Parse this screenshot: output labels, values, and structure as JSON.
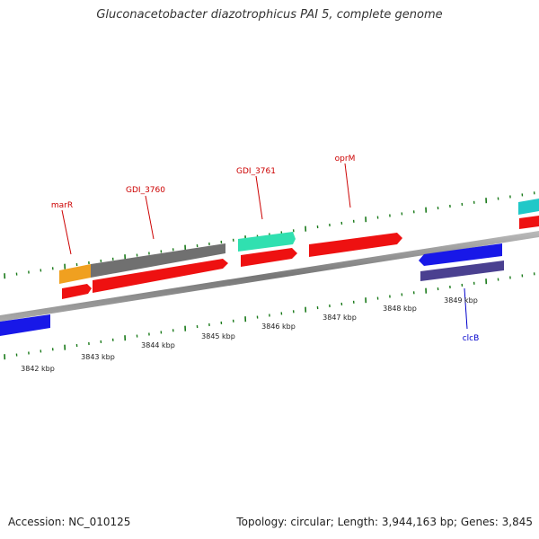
{
  "title": "Gluconacetobacter diazotrophicus PAI 5, complete genome",
  "footer": {
    "accession": "Accession: NC_010125",
    "summary": "Topology: circular; Length: 3,944,163 bp; Genes: 3,845"
  },
  "scale_labels": [
    "3842 kbp",
    "3843 kbp",
    "3844 kbp",
    "3845 kbp",
    "3846 kbp",
    "3847 kbp",
    "3848 kbp",
    "3849 kbp"
  ],
  "gene_labels": [
    {
      "text": "marR",
      "color": "#cc0000"
    },
    {
      "text": "GDI_3760",
      "color": "#cc0000"
    },
    {
      "text": "GDI_3761",
      "color": "#cc0000"
    },
    {
      "text": "oprM",
      "color": "#cc0000"
    },
    {
      "text": "clcB",
      "color": "#0000cc"
    }
  ],
  "colors": {
    "backbone": "#888888",
    "tick": "#1a7a1a",
    "cds": "#ee1111",
    "gene_orange": "#f0a020",
    "gene_gray": "#707070",
    "gene_teal": "#30e0b0",
    "gene_cyan": "#20c8c8",
    "gene_blue": "#1818e8",
    "gene_navy": "#4a4090"
  }
}
